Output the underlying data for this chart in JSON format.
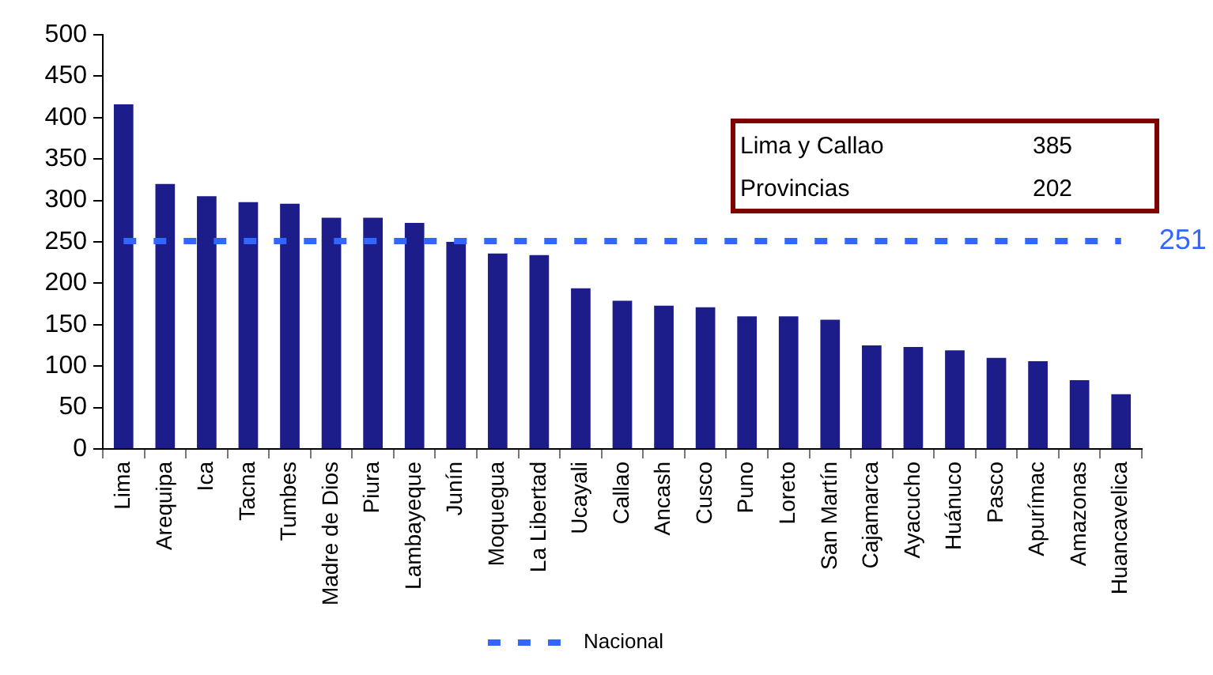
{
  "chart_data": {
    "type": "bar",
    "categories": [
      "Lima",
      "Arequipa",
      "Ica",
      "Tacna",
      "Tumbes",
      "Madre de Dios",
      "Piura",
      "Lambayeque",
      "Junín",
      "Moquegua",
      "La Libertad",
      "Ucayali",
      "Callao",
      "Ancash",
      "Cusco",
      "Puno",
      "Loreto",
      "San Martín",
      "Cajamarca",
      "Ayacucho",
      "Huánuco",
      "Pasco",
      "Apurímac",
      "Amazonas",
      "Huancavelica"
    ],
    "series": [
      {
        "color": "#1c1c8a",
        "values": [
          416,
          320,
          305,
          298,
          296,
          279,
          279,
          273,
          250,
          236,
          234,
          194,
          179,
          173,
          171,
          160,
          160,
          156,
          125,
          123,
          119,
          110,
          106,
          83,
          66
        ]
      },
      {
        "type": "line",
        "name": "Nacional",
        "color": "#3366ff",
        "values": [
          251,
          251,
          251,
          251,
          251,
          251,
          251,
          251,
          251,
          251,
          251,
          251,
          251,
          251,
          251,
          251,
          251,
          251,
          251,
          251,
          251,
          251,
          251,
          251,
          251
        ],
        "value_labels": [
          null,
          null,
          null,
          null,
          null,
          null,
          null,
          null,
          null,
          null,
          null,
          null,
          null,
          null,
          null,
          null,
          null,
          null,
          null,
          null,
          null,
          null,
          null,
          null,
          "251"
        ]
      }
    ],
    "ylim": [
      0,
      500
    ],
    "yticks": [
      0,
      50,
      100,
      150,
      200,
      250,
      300,
      350,
      400,
      450,
      500
    ],
    "grid": false,
    "legend": "bottom",
    "line_style": "dashed",
    "annotations": [
      "Lima y Callao",
      "385",
      "Provincias",
      "202"
    ]
  }
}
